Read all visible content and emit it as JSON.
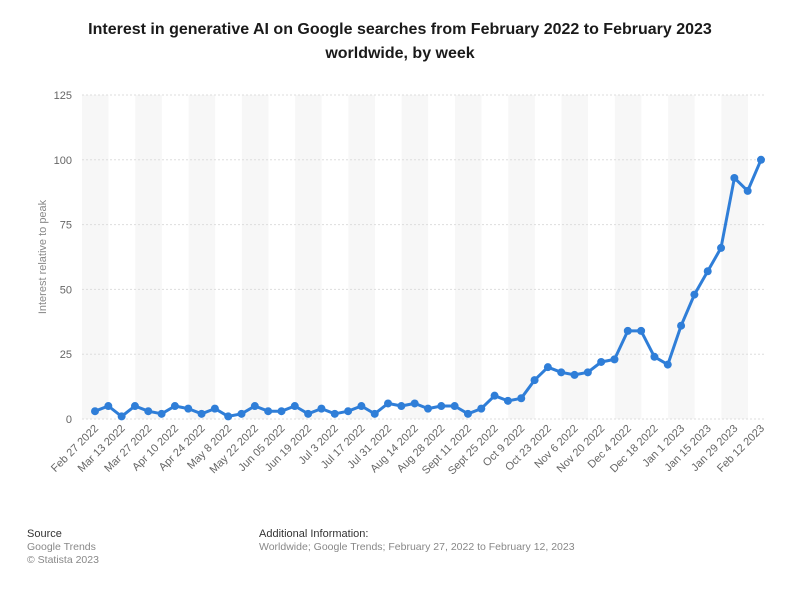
{
  "title_line1": "Interest in generative AI on Google searches from February 2022 to February 2023",
  "title_line2": "worldwide, by week",
  "footer": {
    "source_label": "Source",
    "source_name": "Google Trends",
    "copyright": "© Statista 2023",
    "info_label": "Additional Information:",
    "info_text": "Worldwide; Google Trends; February 27, 2022 to February 12, 2023"
  },
  "colors": {
    "line": "#2f7ed8",
    "band_light": "#f7f7f7",
    "band_white": "#ffffff",
    "grid": "#dddddd"
  },
  "chart_data": {
    "type": "line",
    "title": "Interest in generative AI on Google searches from February 2022 to February 2023 worldwide, by week",
    "xlabel": "",
    "ylabel": "Interest relative to peak",
    "ylim": [
      0,
      125
    ],
    "yticks": [
      0,
      25,
      50,
      75,
      100,
      125
    ],
    "grid": true,
    "categories": [
      "Feb 27 2022",
      "Mar 6 2022",
      "Mar 13 2022",
      "Mar 20 2022",
      "Mar 27 2022",
      "Apr 3 2022",
      "Apr 10 2022",
      "Apr 17 2022",
      "Apr 24 2022",
      "May 1 2022",
      "May 8 2022",
      "May 15 2022",
      "May 22 2022",
      "May 29 2022",
      "Jun 05 2022",
      "Jun 12 2022",
      "Jun 19 2022",
      "Jun 26 2022",
      "Jul 3 2022",
      "Jul 10 2022",
      "Jul 17 2022",
      "Jul 24 2022",
      "Jul 31 2022",
      "Aug 7 2022",
      "Aug 14 2022",
      "Aug 21 2022",
      "Aug 28 2022",
      "Sep 4 2022",
      "Sept 11 2022",
      "Sep 18 2022",
      "Sept 25 2022",
      "Oct 2 2022",
      "Oct 9 2022",
      "Oct 16 2022",
      "Oct 23 2022",
      "Oct 30 2022",
      "Nov 6 2022",
      "Nov 13 2022",
      "Nov 20 2022",
      "Nov 27 2022",
      "Dec 4 2022",
      "Dec 11 2022",
      "Dec 18 2022",
      "Dec 25 2022",
      "Jan 1 2023",
      "Jan 8 2023",
      "Jan 15 2023",
      "Jan 22 2023",
      "Jan 29 2023",
      "Feb 5 2023",
      "Feb 12 2023"
    ],
    "tick_labels": [
      "Feb 27 2022",
      "Mar 13 2022",
      "Mar 27 2022",
      "Apr 10 2022",
      "Apr 24 2022",
      "May 8 2022",
      "May 22 2022",
      "Jun 05 2022",
      "Jun 19 2022",
      "Jul 3 2022",
      "Jul 17 2022",
      "Jul 31 2022",
      "Aug 14 2022",
      "Aug 28 2022",
      "Sept 11 2022",
      "Sept 25 2022",
      "Oct 9 2022",
      "Oct 23 2022",
      "Nov 6 2022",
      "Nov 20 2022",
      "Dec 4 2022",
      "Dec 18 2022",
      "Jan 1 2023",
      "Jan 15 2023",
      "Jan 29 2023",
      "Feb 12 2023"
    ],
    "series": [
      {
        "values": [
          3,
          5,
          1,
          5,
          3,
          2,
          5,
          4,
          2,
          4,
          1,
          2,
          5,
          3,
          3,
          5,
          2,
          4,
          2,
          3,
          5,
          2,
          6,
          5,
          6,
          4,
          5,
          5,
          2,
          4,
          9,
          7,
          8,
          15,
          20,
          18,
          17,
          18,
          22,
          23,
          34,
          34,
          24,
          21,
          36,
          48,
          57,
          66,
          93,
          88,
          100
        ]
      }
    ]
  }
}
